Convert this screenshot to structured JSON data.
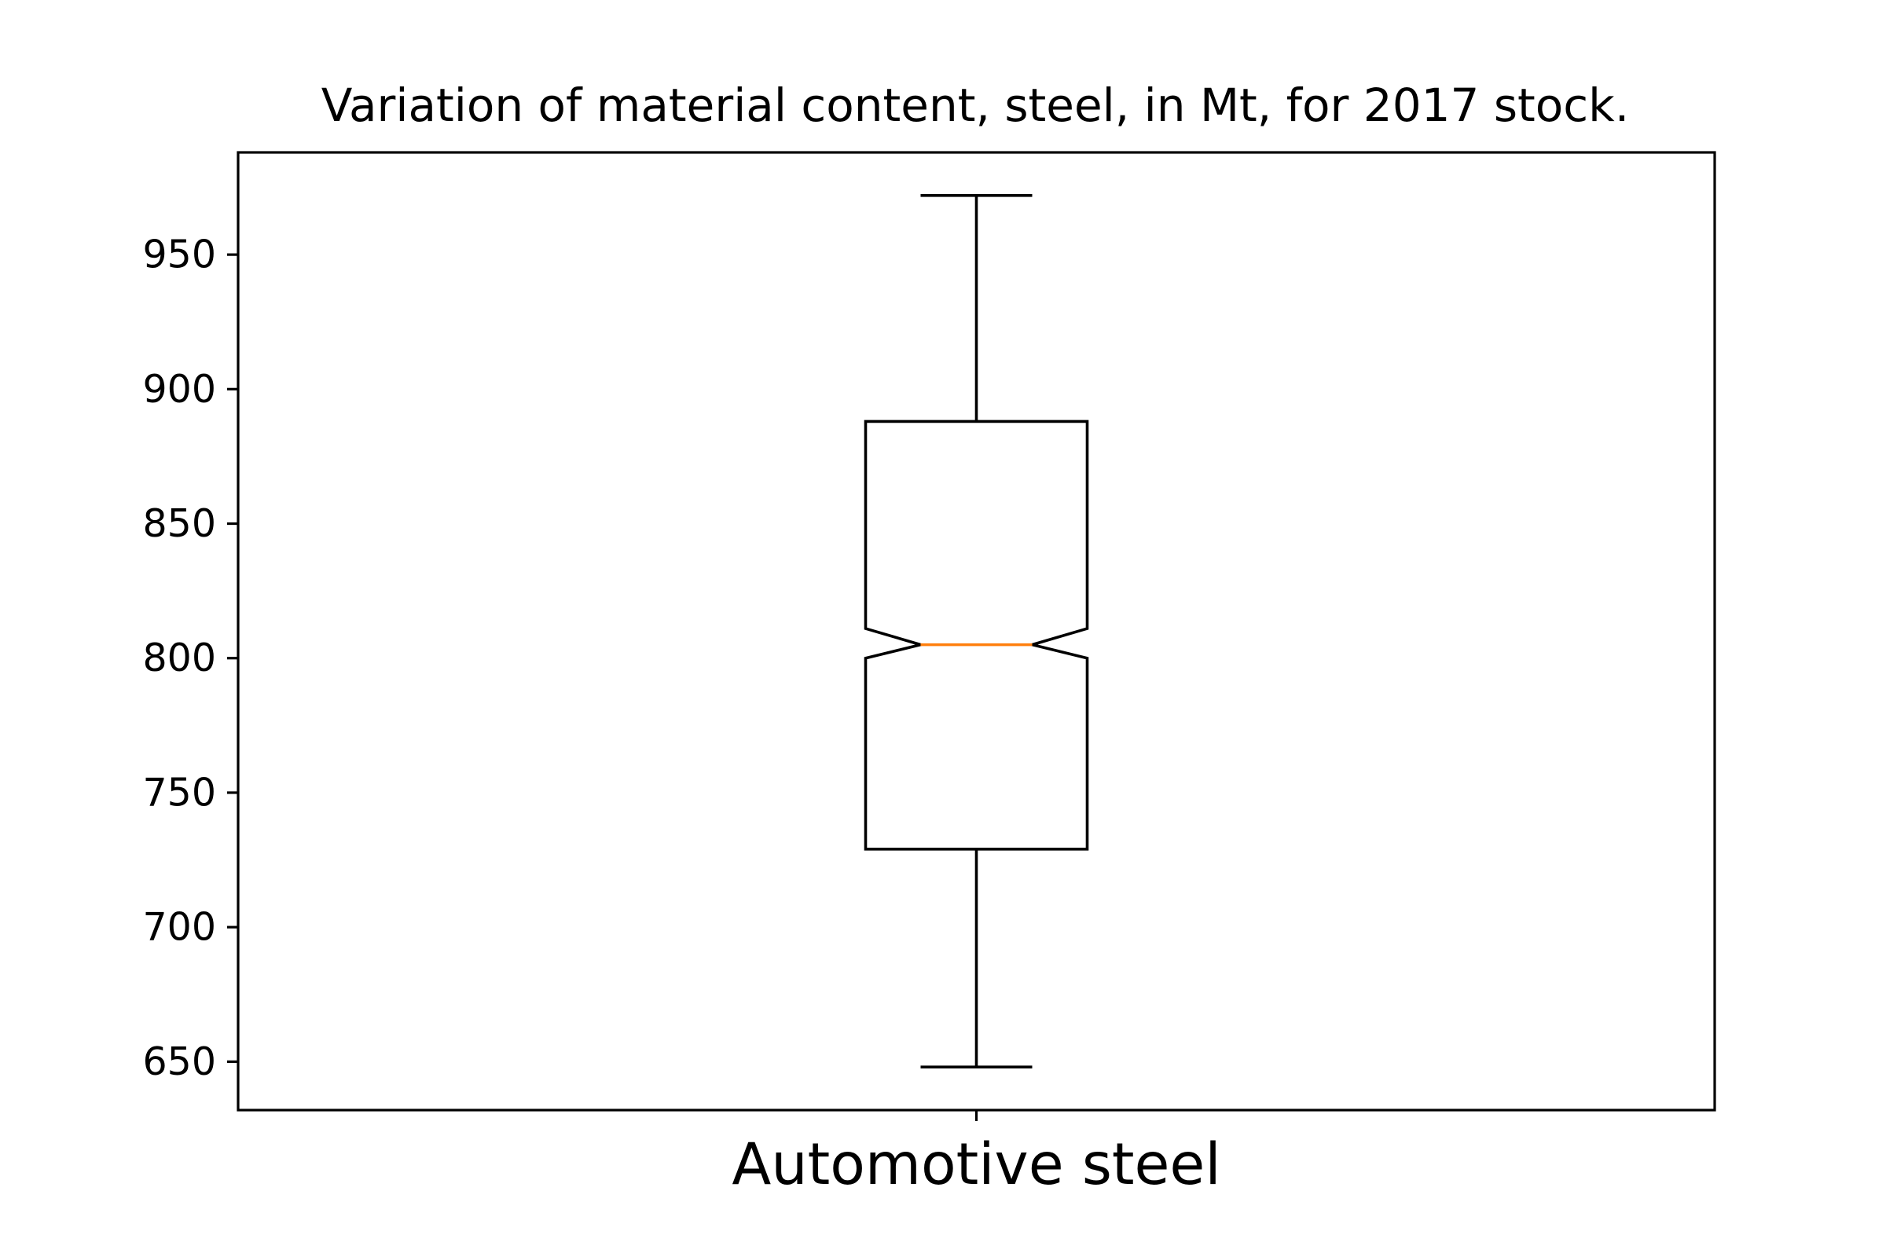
{
  "chart_data": {
    "type": "boxplot",
    "title": "Variation of material content, steel, in Mt, for 2017 stock.",
    "xlabel": "",
    "ylabel": "",
    "categories": [
      "Automotive steel"
    ],
    "notched": true,
    "boxes": [
      {
        "category": "Automotive steel",
        "whisker_low": 648,
        "q1": 729,
        "median": 805,
        "q3": 888,
        "whisker_high": 972,
        "notch_low": 800,
        "notch_high": 811
      }
    ],
    "ylim": [
      632,
      988
    ],
    "yticks": [
      650,
      700,
      750,
      800,
      850,
      900,
      950
    ],
    "grid": false,
    "legend": "none",
    "colors": {
      "box": "#000000",
      "median": "#ff7f0e",
      "background": "#ffffff"
    }
  }
}
